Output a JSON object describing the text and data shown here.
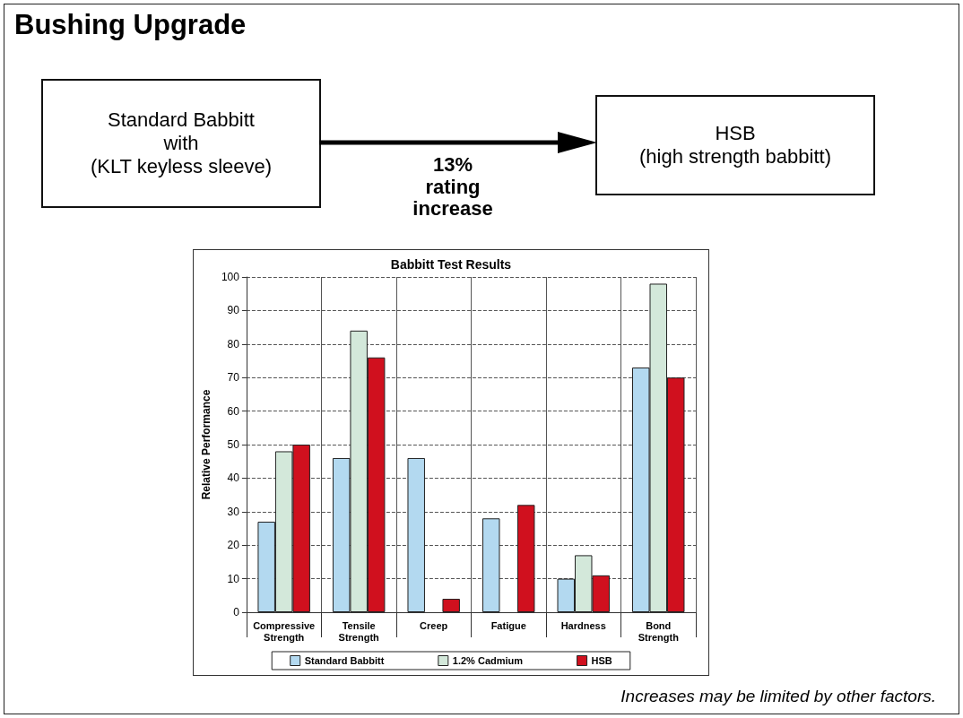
{
  "chart_data": {
    "type": "bar",
    "title": "Babbitt Test Results",
    "subtitle": "Bushing Upgrade",
    "ylabel": "Relative Performance",
    "categories": [
      "Compressive\nStrength",
      "Tensile\nStrength",
      "Creep",
      "Fatigue",
      "Hardness",
      "Bond\nStrength"
    ],
    "series": [
      {
        "name": "Standard Babbitt",
        "color": "#b3d9f0",
        "values": [
          27,
          46,
          46,
          28,
          10,
          73
        ]
      },
      {
        "name": "1.2% Cadmium",
        "color": "#d3e8da",
        "values": [
          48,
          84,
          null,
          null,
          17,
          98
        ]
      },
      {
        "name": "HSB",
        "color": "#d0101e",
        "values": [
          50,
          76,
          4,
          32,
          11,
          70
        ]
      }
    ],
    "ylim": [
      0,
      100
    ],
    "yticks": [
      0,
      10,
      20,
      30,
      40,
      50,
      60,
      70,
      80,
      90,
      100
    ],
    "grid": true,
    "line_style": "dashed",
    "legend": "bottom",
    "annotations": [
      "Standard Babbitt\nwith\n(KLT keyless sleeve)",
      "HSB\n(high strength babbitt)",
      "13%\nrating\nincrease",
      "Increases may be limited by other factors."
    ]
  }
}
